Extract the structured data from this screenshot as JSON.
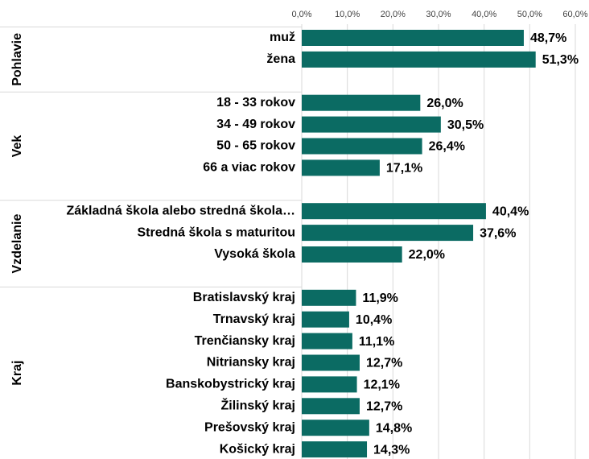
{
  "chart_data": {
    "type": "grouped-hbar",
    "color": "#0b6b63",
    "grid": true,
    "xlim": [
      0,
      60
    ],
    "xticks": [
      {
        "value": 0,
        "label": "0,0%"
      },
      {
        "value": 10,
        "label": "10,0%"
      },
      {
        "value": 20,
        "label": "20,0%"
      },
      {
        "value": 30,
        "label": "30,0%"
      },
      {
        "value": 40,
        "label": "40,0%"
      },
      {
        "value": 50,
        "label": "50,0%"
      },
      {
        "value": 60,
        "label": "60,0%"
      }
    ],
    "groups": [
      {
        "name": "Pohlavie",
        "categories": [
          "muž",
          "žena"
        ],
        "values": [
          48.7,
          51.3
        ],
        "value_labels": [
          "48,7%",
          "51,3%"
        ]
      },
      {
        "name": "Vek",
        "categories": [
          "18 - 33 rokov",
          "34 - 49 rokov",
          "50 - 65 rokov",
          "66 a viac rokov"
        ],
        "values": [
          26.0,
          30.5,
          26.4,
          17.1
        ],
        "value_labels": [
          "26,0%",
          "30,5%",
          "26,4%",
          "17,1%"
        ]
      },
      {
        "name": "Vzdelanie",
        "categories": [
          "Základná škola alebo stredná škola…",
          "Stredná škola s maturitou",
          "Vysoká škola"
        ],
        "values": [
          40.4,
          37.6,
          22.0
        ],
        "value_labels": [
          "40,4%",
          "37,6%",
          "22,0%"
        ]
      },
      {
        "name": "Kraj",
        "categories": [
          "Bratislavský kraj",
          "Trnavský kraj",
          "Trenčiansky kraj",
          "Nitriansky kraj",
          "Banskobystrický kraj",
          "Žilinský kraj",
          "Prešovský kraj",
          "Košický kraj"
        ],
        "values": [
          11.9,
          10.4,
          11.1,
          12.7,
          12.1,
          12.7,
          14.8,
          14.3
        ],
        "value_labels": [
          "11,9%",
          "10,4%",
          "11,1%",
          "12,7%",
          "12,1%",
          "12,7%",
          "14,8%",
          "14,3%"
        ]
      }
    ]
  }
}
